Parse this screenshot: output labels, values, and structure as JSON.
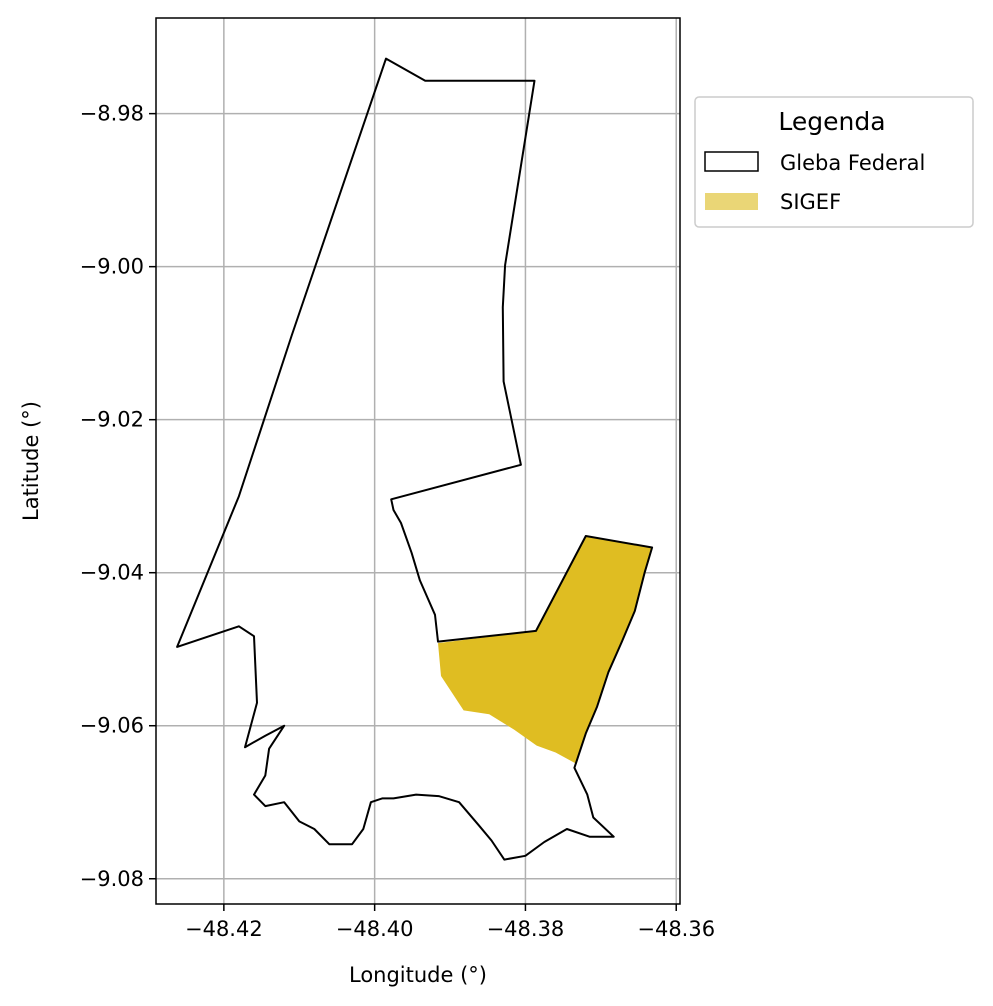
{
  "chart_data": {
    "type": "map",
    "xlabel": "Longitude (°)",
    "ylabel": "Latitude (°)",
    "xlim": [
      -48.429,
      -48.3595
    ],
    "ylim": [
      -9.0833,
      -8.9675
    ],
    "grid": true,
    "x_ticks": [
      {
        "value": -48.42,
        "label": "−48.42"
      },
      {
        "value": -48.4,
        "label": "−48.40"
      },
      {
        "value": -48.38,
        "label": "−48.38"
      },
      {
        "value": -48.36,
        "label": "−48.36"
      }
    ],
    "y_ticks": [
      {
        "value": -8.98,
        "label": "−8.98"
      },
      {
        "value": -9.0,
        "label": "−9.00"
      },
      {
        "value": -9.02,
        "label": "−9.02"
      },
      {
        "value": -9.04,
        "label": "−9.04"
      },
      {
        "value": -9.06,
        "label": "−9.06"
      },
      {
        "value": -9.08,
        "label": "−9.08"
      }
    ],
    "legend": {
      "title": "Legenda",
      "placement": "outside-top-right",
      "entries": [
        "Gleba Federal",
        "SIGEF"
      ]
    },
    "series": [
      {
        "name": "Gleba Federal",
        "style": "outline",
        "edge_color": "#000000",
        "polygon": [
          [
            -48.3985,
            -8.9728
          ],
          [
            -48.3933,
            -8.9757
          ],
          [
            -48.3788,
            -8.9757
          ],
          [
            -48.3827,
            -8.9998
          ],
          [
            -48.383,
            -9.0053
          ],
          [
            -48.3829,
            -9.015
          ],
          [
            -48.3806,
            -9.0259
          ],
          [
            -48.3978,
            -9.0304
          ],
          [
            -48.3975,
            -9.0318
          ],
          [
            -48.3965,
            -9.0335
          ],
          [
            -48.3951,
            -9.0374
          ],
          [
            -48.394,
            -9.041
          ],
          [
            -48.392,
            -9.0455
          ],
          [
            -48.3916,
            -9.049
          ],
          [
            -48.3786,
            -9.0476
          ],
          [
            -48.372,
            -9.0352
          ],
          [
            -48.3632,
            -9.0367
          ],
          [
            -48.3642,
            -9.04
          ],
          [
            -48.3655,
            -9.045
          ],
          [
            -48.3672,
            -9.049
          ],
          [
            -48.369,
            -9.053
          ],
          [
            -48.3705,
            -9.0575
          ],
          [
            -48.372,
            -9.061
          ],
          [
            -48.3735,
            -9.0655
          ],
          [
            -48.3718,
            -9.069
          ],
          [
            -48.371,
            -9.072
          ],
          [
            -48.3683,
            -9.0745
          ],
          [
            -48.3715,
            -9.0745
          ],
          [
            -48.3745,
            -9.0735
          ],
          [
            -48.3775,
            -9.0752
          ],
          [
            -48.38,
            -9.077
          ],
          [
            -48.3828,
            -9.0775
          ],
          [
            -48.3845,
            -9.075
          ],
          [
            -48.3862,
            -9.073
          ],
          [
            -48.3888,
            -9.07
          ],
          [
            -48.3915,
            -9.0692
          ],
          [
            -48.3945,
            -9.069
          ],
          [
            -48.3975,
            -9.0695
          ],
          [
            -48.399,
            -9.0695
          ],
          [
            -48.4005,
            -9.07
          ],
          [
            -48.4015,
            -9.0735
          ],
          [
            -48.403,
            -9.0755
          ],
          [
            -48.406,
            -9.0755
          ],
          [
            -48.408,
            -9.0735
          ],
          [
            -48.41,
            -9.0725
          ],
          [
            -48.412,
            -9.07
          ],
          [
            -48.4145,
            -9.0705
          ],
          [
            -48.416,
            -9.069
          ],
          [
            -48.4145,
            -9.0665
          ],
          [
            -48.414,
            -9.063
          ],
          [
            -48.412,
            -9.06
          ],
          [
            -48.4145,
            -9.0613
          ],
          [
            -48.4172,
            -9.0628
          ],
          [
            -48.4156,
            -9.057
          ],
          [
            -48.416,
            -9.0483
          ],
          [
            -48.418,
            -9.047
          ],
          [
            -48.4262,
            -9.0497
          ],
          [
            -48.418,
            -9.03
          ],
          [
            -48.411,
            -9.009
          ],
          [
            -48.3985,
            -8.9728
          ]
        ]
      },
      {
        "name": "SIGEF",
        "style": "filled",
        "fill_color": "#dfbd22",
        "polygon": [
          [
            -48.3916,
            -9.0492
          ],
          [
            -48.3786,
            -9.0476
          ],
          [
            -48.372,
            -9.0352
          ],
          [
            -48.3632,
            -9.0367
          ],
          [
            -48.3642,
            -9.04
          ],
          [
            -48.3655,
            -9.045
          ],
          [
            -48.3672,
            -9.049
          ],
          [
            -48.369,
            -9.053
          ],
          [
            -48.3705,
            -9.0575
          ],
          [
            -48.372,
            -9.061
          ],
          [
            -48.3732,
            -9.065
          ],
          [
            -48.376,
            -9.0635
          ],
          [
            -48.3785,
            -9.0626
          ],
          [
            -48.3815,
            -9.0605
          ],
          [
            -48.3848,
            -9.0585
          ],
          [
            -48.3882,
            -9.058
          ],
          [
            -48.3912,
            -9.0535
          ],
          [
            -48.3916,
            -9.0492
          ]
        ]
      }
    ]
  },
  "colors": {
    "gleba_edge": "#000000",
    "sigef_fill": "#dfbd22",
    "sigef_legend_fill": "#ead676",
    "grid": "#b0b0b0"
  }
}
